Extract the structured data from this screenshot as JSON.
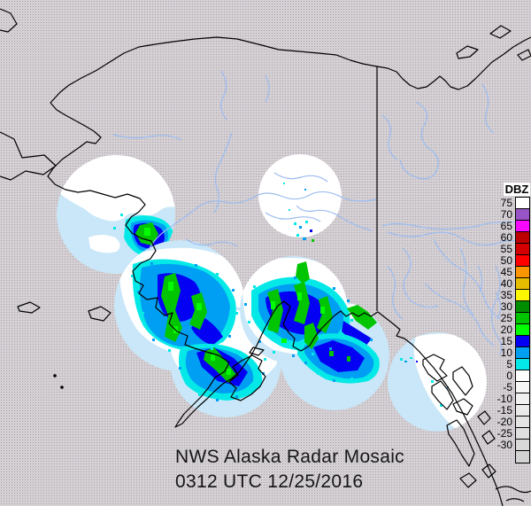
{
  "title": {
    "line1": "NWS Alaska Radar Mosaic",
    "line2": "0312 UTC 12/25/2016"
  },
  "legend": {
    "title": "DBZ",
    "units": "DBZ",
    "entries": [
      {
        "label": "75",
        "color": "#FFFFFF"
      },
      {
        "label": "70",
        "color": "#9854C6"
      },
      {
        "label": "65",
        "color": "#F808FD"
      },
      {
        "label": "60",
        "color": "#BC0000"
      },
      {
        "label": "55",
        "color": "#D40000"
      },
      {
        "label": "50",
        "color": "#FE0000"
      },
      {
        "label": "45",
        "color": "#FD9500"
      },
      {
        "label": "40",
        "color": "#E5BC00"
      },
      {
        "label": "35",
        "color": "#FDF802"
      },
      {
        "label": "30",
        "color": "#008E00"
      },
      {
        "label": "25",
        "color": "#01C501"
      },
      {
        "label": "20",
        "color": "#02FD02"
      },
      {
        "label": "15",
        "color": "#0300F4"
      },
      {
        "label": "10",
        "color": "#019FF4"
      },
      {
        "label": "5",
        "color": "#04E9E7"
      },
      {
        "label": "0",
        "color": "#FDFDFD"
      },
      {
        "label": "-5",
        "color": "#F6F6F6"
      },
      {
        "label": "-10",
        "color": "#F0F0F0"
      },
      {
        "label": "-15",
        "color": "#EAEAEA"
      },
      {
        "label": "-20",
        "color": "#E4E4E4"
      },
      {
        "label": "-25",
        "color": "#DEDEDE"
      },
      {
        "label": "-30",
        "color": "#D8D8D8"
      },
      {
        "label": "",
        "color": "#D2D2D2"
      }
    ]
  },
  "colors": {
    "background_gray": "#d4d0d4",
    "radar_water": "#c9e7f8",
    "radar_land": "#ffffff",
    "river": "#9cbcf0",
    "coastline": "#000000",
    "echo_cyan": "#04E9E7",
    "echo_light_blue": "#019FF4",
    "echo_blue": "#0300F4",
    "echo_green": "#01C501",
    "echo_bright_green": "#02FD02"
  }
}
